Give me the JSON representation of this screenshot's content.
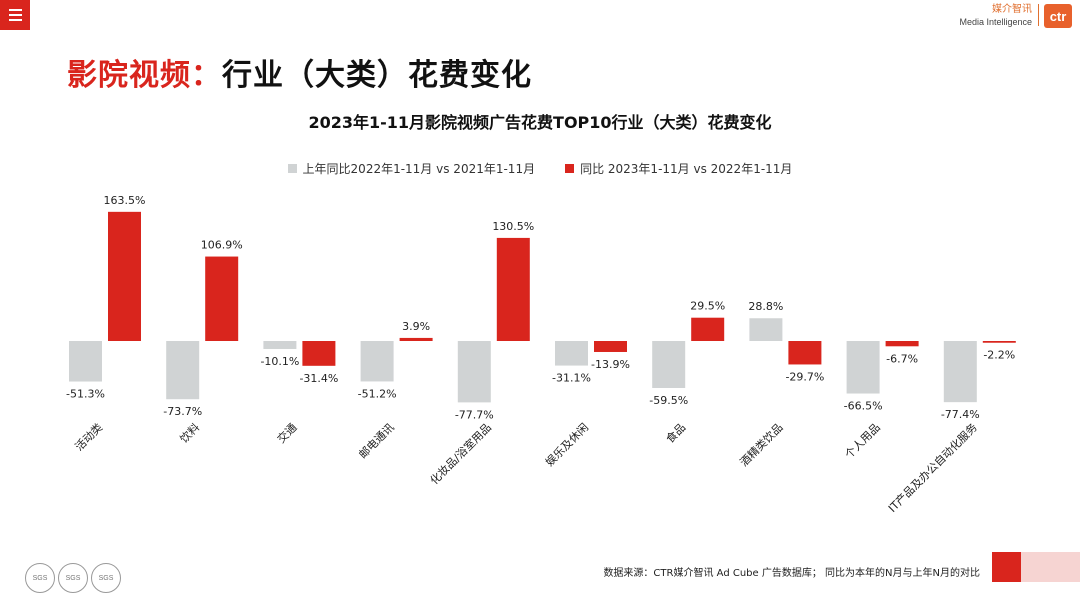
{
  "header": {
    "brand_cn": "媒介智讯",
    "brand_en": "Media Intelligence",
    "logo_text": "ctr"
  },
  "page_title_red": "影院视频：",
  "page_title_black": "行业（大类）花费变化",
  "chart_data": {
    "type": "bar",
    "title": "2023年1-11月影院视频广告花费TOP10行业（大类）花费变化",
    "categories": [
      "活动类",
      "饮料",
      "交通",
      "邮电通讯",
      "化妆品/浴室用品",
      "娱乐及休闲",
      "食品",
      "酒精类饮品",
      "个人用品",
      "IT产品及办公自动化服务"
    ],
    "series": [
      {
        "name": "上年同比2022年1-11月 vs 2021年1-11月",
        "color": "#d0d3d4",
        "values": [
          -51.3,
          -73.7,
          -10.1,
          -51.2,
          -77.7,
          -31.1,
          -59.5,
          28.8,
          -66.5,
          -77.4
        ]
      },
      {
        "name": "同比 2023年1-11月 vs 2022年1-11月",
        "color": "#d9251d",
        "values": [
          163.5,
          106.9,
          -31.4,
          3.9,
          130.5,
          -13.9,
          29.5,
          -29.7,
          -6.7,
          -2.2
        ]
      }
    ],
    "value_suffix": "%",
    "grid": false,
    "legend_position": "top"
  },
  "footer": {
    "source": "数据来源：CTR媒介智讯 Ad Cube 广告数据库；  同比为本年的N月与上年N月的对比",
    "seal_labels": [
      "SGS",
      "SGS",
      "SGS"
    ]
  }
}
